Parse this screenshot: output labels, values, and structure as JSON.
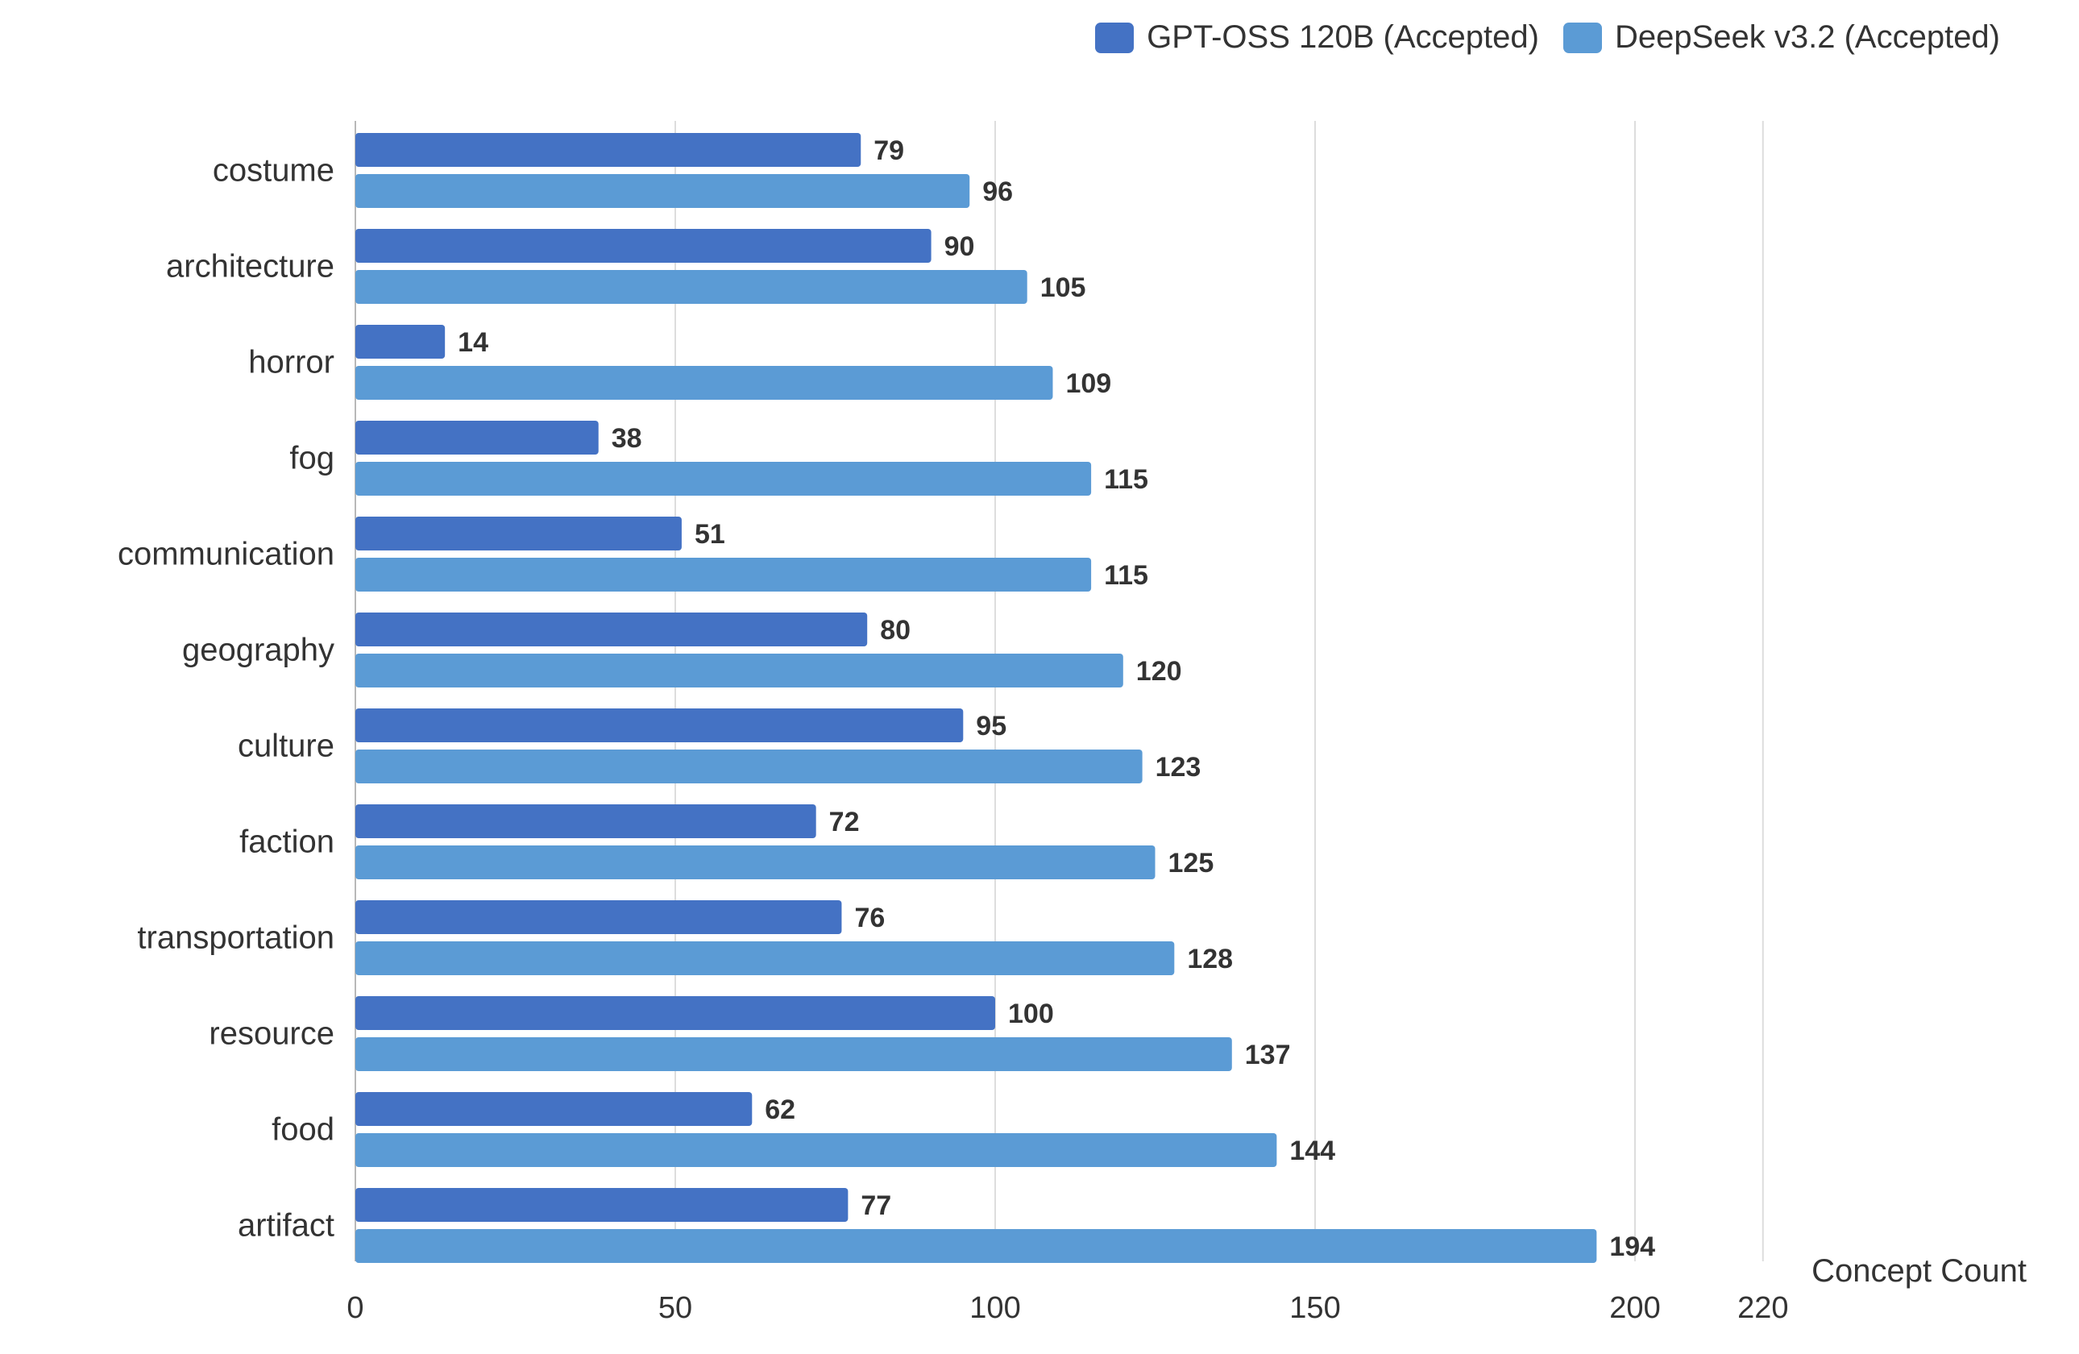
{
  "legend": {
    "items": [
      {
        "label": "GPT-OSS 120B (Accepted)",
        "color": "#4472c4"
      },
      {
        "label": "DeepSeek v3.2 (Accepted)",
        "color": "#5b9bd5"
      }
    ]
  },
  "chart_data": {
    "type": "bar",
    "orientation": "horizontal",
    "categories": [
      "costume",
      "architecture",
      "horror",
      "fog",
      "communication",
      "geography",
      "culture",
      "faction",
      "transportation",
      "resource",
      "food",
      "artifact"
    ],
    "series": [
      {
        "name": "GPT-OSS 120B (Accepted)",
        "color": "#4472c4",
        "values": [
          79,
          90,
          14,
          38,
          51,
          80,
          95,
          72,
          76,
          100,
          62,
          77
        ]
      },
      {
        "name": "DeepSeek v3.2 (Accepted)",
        "color": "#5b9bd5",
        "values": [
          96,
          105,
          109,
          115,
          115,
          120,
          123,
          125,
          128,
          137,
          144,
          194
        ]
      }
    ],
    "xlabel": "Concept Count",
    "xticks": [
      0,
      50,
      100,
      150,
      200,
      220
    ],
    "xlim": [
      0,
      220
    ],
    "grid": true,
    "data_labels": true,
    "legend_position": "top-right"
  }
}
